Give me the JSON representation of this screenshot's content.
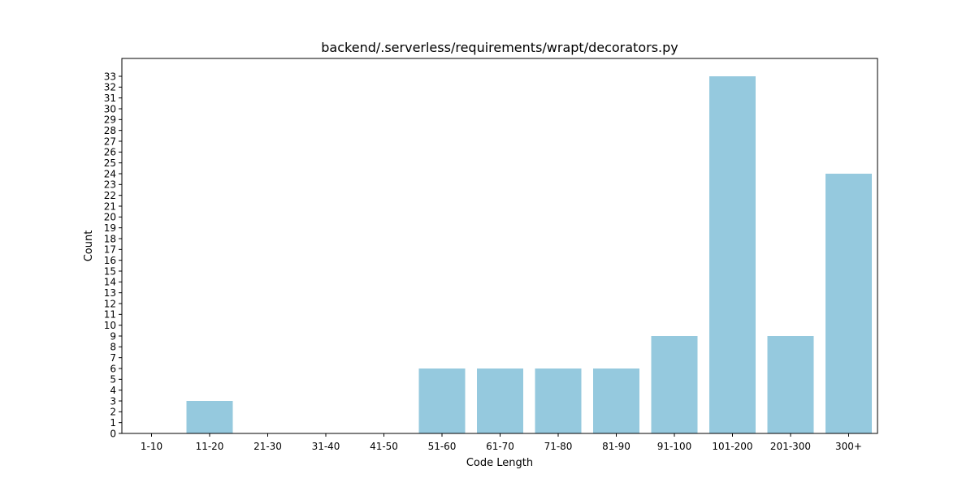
{
  "chart_data": {
    "type": "bar",
    "title": "backend/.serverless/requirements/wrapt/decorators.py",
    "xlabel": "Code Length",
    "ylabel": "Count",
    "categories": [
      "1-10",
      "11-20",
      "21-30",
      "31-40",
      "41-50",
      "51-60",
      "61-70",
      "71-80",
      "81-90",
      "91-100",
      "101-200",
      "201-300",
      "300+"
    ],
    "values": [
      0,
      3,
      0,
      0,
      0,
      6,
      6,
      6,
      6,
      9,
      33,
      9,
      24
    ],
    "ylim": [
      0,
      34.65
    ],
    "yticks": [
      0,
      1,
      2,
      3,
      4,
      5,
      6,
      7,
      8,
      9,
      10,
      11,
      12,
      13,
      14,
      15,
      16,
      17,
      18,
      19,
      20,
      21,
      22,
      23,
      24,
      25,
      26,
      27,
      28,
      29,
      30,
      31,
      32,
      33
    ],
    "bar_color": "#95c9de",
    "grid": false,
    "legend": "none"
  }
}
